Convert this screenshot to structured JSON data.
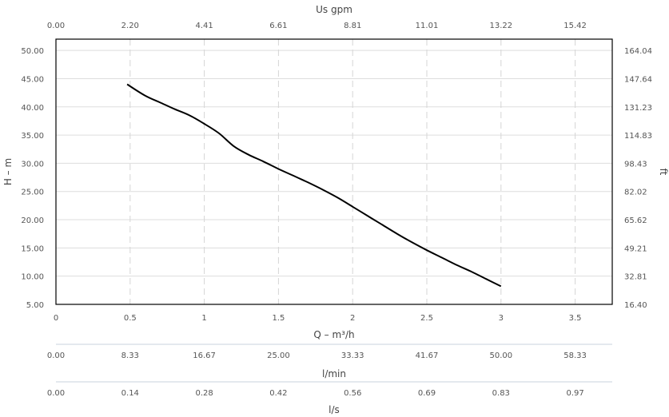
{
  "chart_data": {
    "type": "line",
    "grid": true,
    "x_axis": {
      "label": "Q – m³/h",
      "range": [
        0,
        3.75
      ],
      "ticks": [
        "0",
        "0.5",
        "1",
        "1.5",
        "2",
        "2.5",
        "3",
        "3.5"
      ]
    },
    "y_axis": {
      "label": "H – m",
      "range": [
        5,
        52
      ],
      "ticks": [
        "5.00",
        "10.00",
        "15.00",
        "20.00",
        "25.00",
        "30.00",
        "35.00",
        "40.00",
        "45.00",
        "50.00"
      ]
    },
    "top_axis": {
      "label": "Us gpm",
      "ticks": [
        "0.00",
        "2.20",
        "4.41",
        "6.61",
        "8.81",
        "11.01",
        "13.22",
        "15.42"
      ]
    },
    "right_axis": {
      "label": "ft",
      "ticks": [
        "16.40",
        "32.81",
        "49.21",
        "65.62",
        "82.02",
        "98.43",
        "114.83",
        "131.23",
        "147.64",
        "164.04"
      ]
    },
    "lmin_axis": {
      "label": "l/min",
      "ticks": [
        "0.00",
        "8.33",
        "16.67",
        "25.00",
        "33.33",
        "41.67",
        "50.00",
        "58.33"
      ]
    },
    "ls_axis": {
      "label": "l/s",
      "ticks": [
        "0.00",
        "0.14",
        "0.28",
        "0.42",
        "0.56",
        "0.69",
        "0.83",
        "0.97"
      ]
    },
    "series": [
      {
        "color": "#000000",
        "x": [
          0.48,
          0.6,
          0.7,
          0.8,
          0.9,
          1.0,
          1.1,
          1.2,
          1.3,
          1.4,
          1.5,
          1.6,
          1.7,
          1.8,
          1.9,
          2.0,
          2.1,
          2.2,
          2.3,
          2.4,
          2.5,
          2.6,
          2.7,
          2.8,
          2.9,
          3.0
        ],
        "y": [
          44.0,
          42.0,
          40.8,
          39.6,
          38.5,
          37.0,
          35.3,
          33.0,
          31.5,
          30.3,
          29.0,
          27.8,
          26.6,
          25.3,
          23.9,
          22.3,
          20.7,
          19.1,
          17.5,
          16.0,
          14.6,
          13.3,
          12.0,
          10.8,
          9.5,
          8.2
        ]
      }
    ]
  }
}
